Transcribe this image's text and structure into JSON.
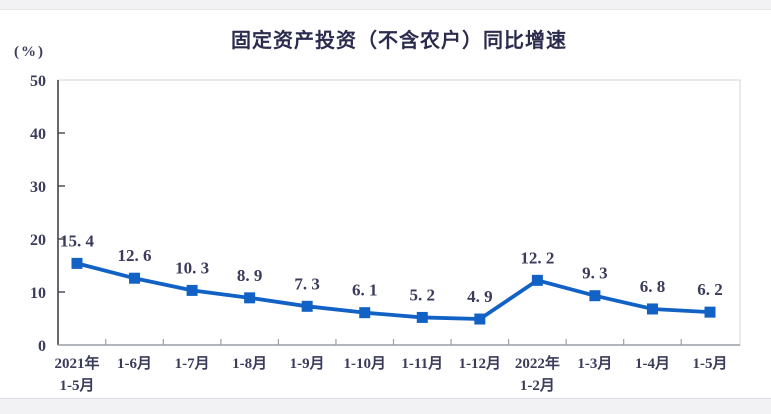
{
  "page": {
    "title": "固定资产投资（不含农户）同比增速",
    "unit_label": "(%)"
  },
  "chart_data": {
    "type": "line",
    "title": "固定资产投资（不含农户）同比增速",
    "ylabel": "(%)",
    "xlabel": "",
    "ylim": [
      0,
      50
    ],
    "y_ticks": [
      0,
      10,
      20,
      30,
      40,
      50
    ],
    "grid": false,
    "legend_position": "none",
    "categories": [
      "2021年\n1-5月",
      "1-6月",
      "1-7月",
      "1-8月",
      "1-9月",
      "1-10月",
      "1-11月",
      "1-12月",
      "2022年\n1-2月",
      "1-3月",
      "1-4月",
      "1-5月"
    ],
    "values": [
      15.4,
      12.6,
      10.3,
      8.9,
      7.3,
      6.1,
      5.2,
      4.9,
      12.2,
      9.3,
      6.8,
      6.2
    ],
    "value_labels": [
      "15. 4",
      "12. 6",
      "10. 3",
      "8. 9",
      "7. 3",
      "6. 1",
      "5. 2",
      "4. 9",
      "12. 2",
      "9. 3",
      "6. 8",
      "6. 2"
    ],
    "line_color": "#1262c6",
    "marker": "square",
    "marker_size": 11,
    "text_color": "#3b3b5c",
    "axis_color": "#43434b",
    "bottom_axis_color": "#9aa0a8",
    "plot_border_color": "#dadae2",
    "plot_background": "#ffffff"
  }
}
